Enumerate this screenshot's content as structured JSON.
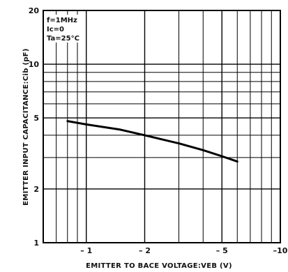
{
  "chart_data": {
    "type": "line",
    "title": "",
    "xlabel": "EMITTER TO BACE VOLTAGE:VEB (V)",
    "ylabel": "EMITTER INPUT CAPACITANCE:Cib (pF)",
    "x_scale": "log",
    "y_scale": "log",
    "xlim": [
      -0.6,
      -10
    ],
    "ylim": [
      1,
      20
    ],
    "x_ticks": [
      {
        "value": -1,
        "label": "– 1"
      },
      {
        "value": -2,
        "label": "– 2"
      },
      {
        "value": -5,
        "label": "– 5"
      },
      {
        "value": -10,
        "label": "–10"
      }
    ],
    "y_ticks": [
      {
        "value": 1,
        "label": "1"
      },
      {
        "value": 2,
        "label": "2"
      },
      {
        "value": 5,
        "label": "5"
      },
      {
        "value": 10,
        "label": "10"
      },
      {
        "value": 20,
        "label": "20"
      }
    ],
    "x_grid": [
      -0.7,
      -0.8,
      -0.9,
      -1,
      -2,
      -3,
      -4,
      -5,
      -6,
      -7,
      -8,
      -9
    ],
    "y_grid": [
      2,
      3,
      4,
      5,
      6,
      7,
      8,
      9,
      10
    ],
    "grid": true,
    "annotations": [
      "f=1MHz",
      "Ic=0",
      "Ta=25°C"
    ],
    "series": [
      {
        "name": "",
        "x": [
          -0.8,
          -1.0,
          -1.5,
          -2.0,
          -3.0,
          -4.0,
          -5.0,
          -6.0
        ],
        "y": [
          4.8,
          4.6,
          4.3,
          4.0,
          3.6,
          3.3,
          3.05,
          2.85
        ]
      }
    ]
  }
}
